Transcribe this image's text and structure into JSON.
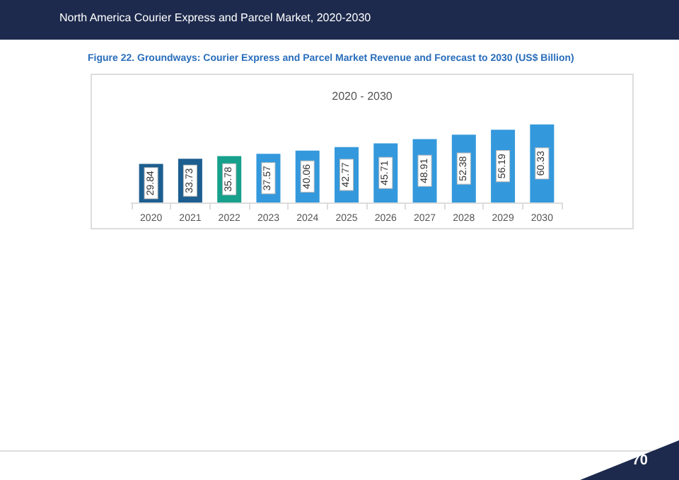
{
  "chart_data": {
    "type": "bar",
    "title": "Figure 22. Groundways: Courier Express and Parcel Market Revenue and Forecast to 2030 (US$ Billion)",
    "subtitle": "2020 - 2030",
    "annotations": [
      "North America Courier Express and Parcel Market, 2020-2030",
      "70"
    ],
    "categories": [
      "2020",
      "2021",
      "2022",
      "2023",
      "2024",
      "2025",
      "2026",
      "2027",
      "2028",
      "2029",
      "2030"
    ],
    "values": [
      29.84,
      33.73,
      35.78,
      37.57,
      40.06,
      42.77,
      45.71,
      48.91,
      52.38,
      56.19,
      60.33
    ],
    "colors": [
      "#1c5e8f",
      "#1c5e8f",
      "#17a08c",
      "#3499dc",
      "#3499dc",
      "#3499dc",
      "#3499dc",
      "#3499dc",
      "#3499dc",
      "#3499dc",
      "#3499dc"
    ],
    "data_labels": true
  }
}
